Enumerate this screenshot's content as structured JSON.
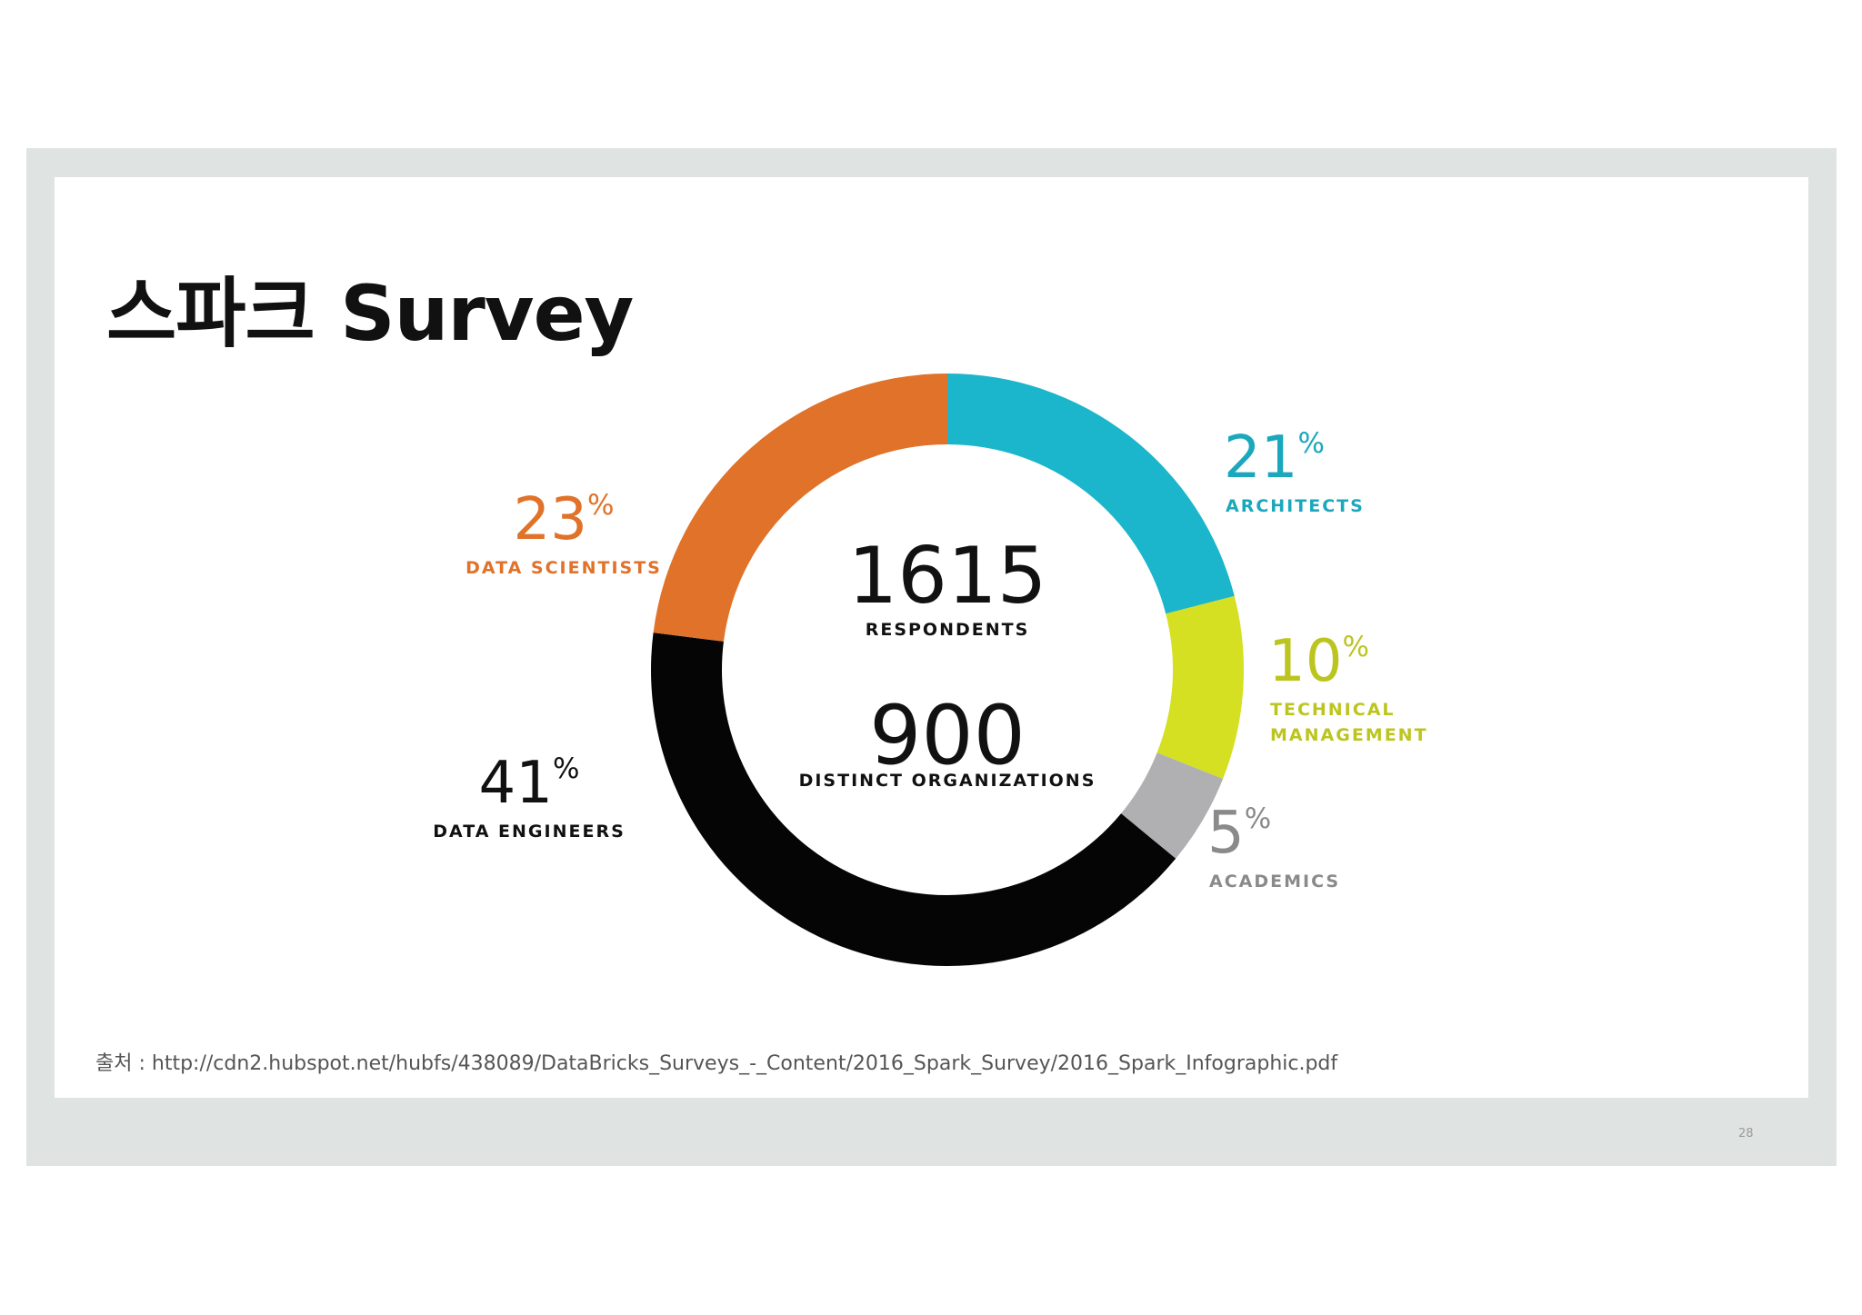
{
  "slide": {
    "title": "스파크 Survey",
    "source": "출처 : http://cdn2.hubspot.net/hubfs/438089/DataBricks_Surveys_-_Content/2016_Spark_Survey/2016_Spark_Infographic.pdf",
    "page_number": "28"
  },
  "chart_data": {
    "type": "pie",
    "style": "donut",
    "center": {
      "respondents_value": "1615",
      "respondents_label": "RESPONDENTS",
      "orgs_value": "900",
      "orgs_label": "DISTINCT ORGANIZATIONS"
    },
    "slices": [
      {
        "key": "architects",
        "pct": "21",
        "value": 21,
        "label_lines": [
          "ARCHITECTS"
        ],
        "color": "#1bb6cb"
      },
      {
        "key": "technical_management",
        "pct": "10",
        "value": 10,
        "label_lines": [
          "TECHNICAL",
          "MANAGEMENT"
        ],
        "color": "#d4e021"
      },
      {
        "key": "academics",
        "pct": "5",
        "value": 5,
        "label_lines": [
          "ACADEMICS"
        ],
        "color": "#b0b0b3"
      },
      {
        "key": "data_engineers",
        "pct": "41",
        "value": 41,
        "label_lines": [
          "DATA ENGINEERS"
        ],
        "color": "#050505"
      },
      {
        "key": "data_scientists",
        "pct": "23",
        "value": 23,
        "label_lines": [
          "DATA SCIENTISTS"
        ],
        "color": "#e07229"
      }
    ],
    "label_colors": {
      "architects": "#1ba8bd",
      "technical_management": "#bcc51f",
      "academics": "#8a8a8a",
      "data_engineers": "#111111",
      "data_scientists": "#e07229"
    }
  }
}
